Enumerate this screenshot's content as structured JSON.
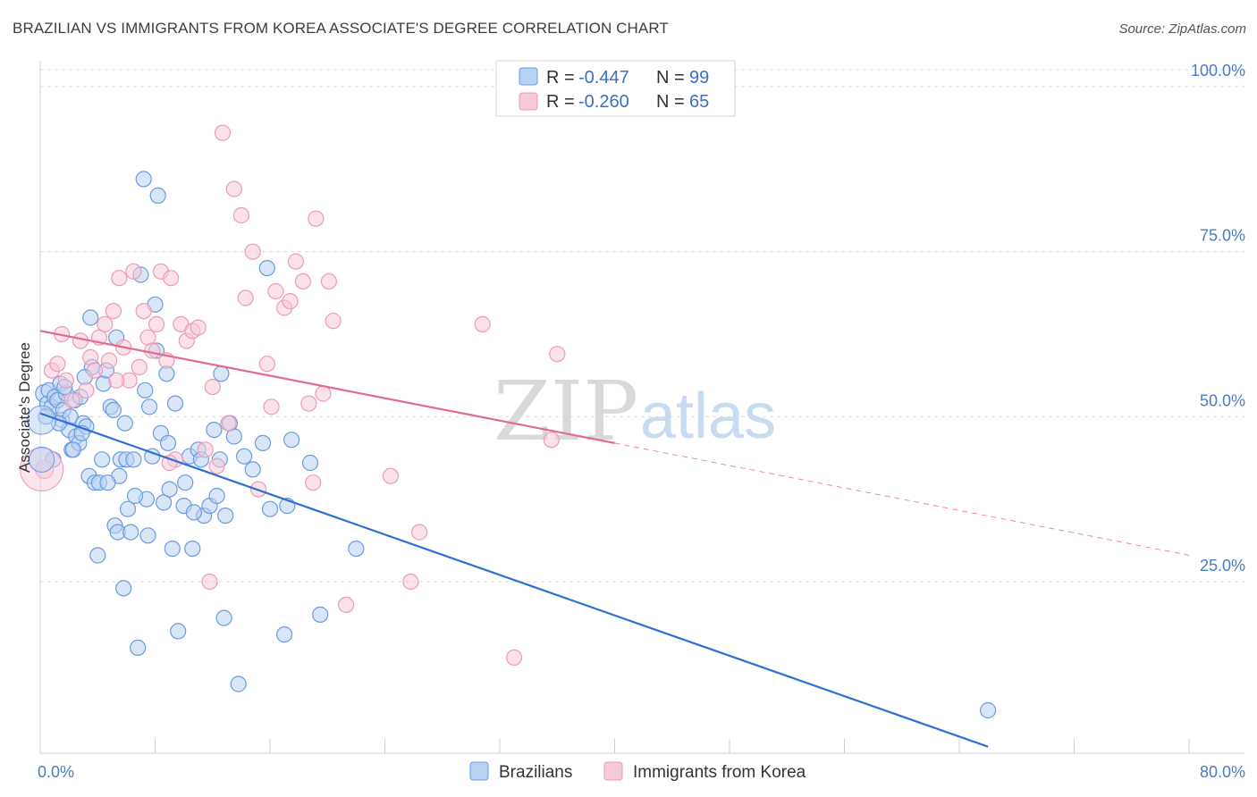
{
  "title": "BRAZILIAN VS IMMIGRANTS FROM KOREA ASSOCIATE'S DEGREE CORRELATION CHART",
  "source": "Source: ZipAtlas.com",
  "watermark": {
    "zip": "ZIP",
    "atlas": "atlas"
  },
  "legend_stats": [
    {
      "r_label": "R = ",
      "r_value": "-0.447",
      "n_label": "N = ",
      "n_value": "99",
      "color": "#a9c6ef"
    },
    {
      "r_label": "R = ",
      "r_value": "-0.260",
      "n_label": "N = ",
      "n_value": "65",
      "color": "#f4b8cb"
    }
  ],
  "chart_data": {
    "type": "scatter",
    "ylabel": "Associate's Degree",
    "xlim": [
      0,
      80
    ],
    "ylim": [
      0,
      105
    ],
    "x_tick_labels": [
      "0.0%",
      "80.0%"
    ],
    "y_ticks": [
      25,
      50,
      75,
      100
    ],
    "y_tick_labels": [
      "25.0%",
      "50.0%",
      "75.0%",
      "100.0%"
    ],
    "grid": true,
    "legend_position": "top-center",
    "series": [
      {
        "name": "Brazilians",
        "color": "#6a9be0",
        "fill": "#b8d1f3",
        "trend": {
          "x0": 0,
          "y0": 50.5,
          "x1": 66,
          "y1": 0,
          "dashed_to": 66
        },
        "points": [
          [
            0.3,
            53.5
          ],
          [
            0.5,
            52.0
          ],
          [
            0.6,
            54.0
          ],
          [
            0.8,
            51.5
          ],
          [
            1.0,
            53.0
          ],
          [
            1.2,
            52.5
          ],
          [
            1.4,
            55.0
          ],
          [
            1.5,
            49.5
          ],
          [
            1.6,
            51.0
          ],
          [
            1.8,
            53.5
          ],
          [
            2.0,
            48.0
          ],
          [
            2.1,
            50.0
          ],
          [
            2.2,
            45.0
          ],
          [
            2.4,
            52.5
          ],
          [
            2.5,
            47.0
          ],
          [
            2.7,
            46.0
          ],
          [
            2.8,
            53.0
          ],
          [
            3.0,
            49.0
          ],
          [
            3.2,
            48.5
          ],
          [
            3.4,
            41.0
          ],
          [
            3.5,
            65.0
          ],
          [
            3.6,
            57.5
          ],
          [
            3.8,
            40.0
          ],
          [
            4.0,
            29.0
          ],
          [
            4.1,
            40.0
          ],
          [
            4.3,
            43.5
          ],
          [
            4.4,
            55.0
          ],
          [
            4.6,
            57.0
          ],
          [
            4.9,
            51.5
          ],
          [
            5.1,
            51.0
          ],
          [
            5.2,
            33.5
          ],
          [
            5.3,
            62.0
          ],
          [
            5.4,
            32.5
          ],
          [
            5.5,
            41.0
          ],
          [
            5.6,
            43.5
          ],
          [
            5.8,
            24.0
          ],
          [
            5.9,
            49.0
          ],
          [
            6.0,
            43.5
          ],
          [
            6.1,
            36.0
          ],
          [
            6.3,
            32.5
          ],
          [
            6.5,
            43.5
          ],
          [
            6.8,
            15.0
          ],
          [
            7.0,
            71.5
          ],
          [
            7.2,
            86.0
          ],
          [
            7.3,
            54.0
          ],
          [
            7.4,
            37.5
          ],
          [
            7.5,
            32.0
          ],
          [
            7.6,
            51.5
          ],
          [
            7.8,
            44.0
          ],
          [
            8.0,
            67.0
          ],
          [
            8.1,
            60.0
          ],
          [
            8.2,
            83.5
          ],
          [
            8.4,
            47.5
          ],
          [
            8.6,
            37.0
          ],
          [
            8.8,
            56.5
          ],
          [
            9.0,
            39.0
          ],
          [
            9.2,
            30.0
          ],
          [
            9.4,
            52.0
          ],
          [
            9.6,
            17.5
          ],
          [
            10.1,
            40.0
          ],
          [
            10.0,
            36.5
          ],
          [
            10.4,
            44.0
          ],
          [
            10.6,
            30.0
          ],
          [
            11.0,
            45.0
          ],
          [
            11.2,
            43.5
          ],
          [
            11.4,
            35.0
          ],
          [
            11.8,
            36.5
          ],
          [
            12.1,
            48.0
          ],
          [
            12.5,
            43.5
          ],
          [
            12.6,
            56.5
          ],
          [
            12.8,
            19.5
          ],
          [
            12.9,
            35.0
          ],
          [
            13.2,
            49.0
          ],
          [
            13.8,
            9.5
          ],
          [
            14.2,
            44.0
          ],
          [
            14.8,
            42.0
          ],
          [
            15.5,
            46.0
          ],
          [
            15.8,
            72.5
          ],
          [
            16.0,
            36.0
          ],
          [
            17.0,
            17.0
          ],
          [
            17.2,
            36.5
          ],
          [
            17.5,
            46.5
          ],
          [
            18.8,
            43.0
          ],
          [
            19.5,
            20.0
          ],
          [
            22.0,
            30.0
          ],
          [
            66.0,
            5.5
          ],
          [
            0.9,
            43.5
          ],
          [
            1.3,
            49.0
          ],
          [
            2.3,
            45.0
          ],
          [
            3.1,
            56.0
          ],
          [
            4.7,
            40.0
          ],
          [
            6.6,
            38.0
          ],
          [
            8.9,
            46.0
          ],
          [
            10.7,
            35.5
          ],
          [
            12.3,
            38.0
          ],
          [
            13.5,
            47.0
          ],
          [
            0.4,
            50.0
          ],
          [
            1.7,
            54.5
          ],
          [
            2.9,
            47.5
          ]
        ]
      },
      {
        "name": "Immigrants from Korea",
        "color": "#ec9bb5",
        "fill": "#f8c9d8",
        "trend": {
          "x0": 0,
          "y0": 63.0,
          "x1": 40,
          "y1": 46.0,
          "dashed_to": 80,
          "dashed_end_y": 29.0
        },
        "points": [
          [
            0.3,
            42.0
          ],
          [
            0.8,
            57.0
          ],
          [
            1.2,
            58.0
          ],
          [
            1.5,
            62.5
          ],
          [
            1.8,
            55.5
          ],
          [
            2.2,
            52.5
          ],
          [
            2.8,
            61.5
          ],
          [
            3.2,
            54.0
          ],
          [
            3.5,
            59.0
          ],
          [
            3.8,
            57.0
          ],
          [
            4.1,
            62.0
          ],
          [
            4.5,
            64.0
          ],
          [
            4.8,
            58.5
          ],
          [
            5.1,
            66.0
          ],
          [
            5.5,
            71.0
          ],
          [
            5.8,
            60.5
          ],
          [
            6.2,
            55.5
          ],
          [
            6.5,
            72.0
          ],
          [
            6.9,
            57.5
          ],
          [
            7.2,
            66.0
          ],
          [
            7.5,
            62.0
          ],
          [
            7.8,
            60.0
          ],
          [
            8.1,
            64.0
          ],
          [
            8.4,
            72.0
          ],
          [
            8.8,
            58.5
          ],
          [
            9.1,
            71.0
          ],
          [
            9.4,
            43.5
          ],
          [
            9.8,
            64.0
          ],
          [
            10.2,
            61.5
          ],
          [
            10.6,
            63.0
          ],
          [
            11.0,
            63.5
          ],
          [
            11.5,
            45.0
          ],
          [
            11.8,
            25.0
          ],
          [
            12.0,
            54.5
          ],
          [
            12.3,
            42.5
          ],
          [
            12.7,
            93.0
          ],
          [
            13.1,
            49.0
          ],
          [
            13.5,
            84.5
          ],
          [
            14.0,
            80.5
          ],
          [
            14.3,
            68.0
          ],
          [
            14.8,
            75.0
          ],
          [
            15.2,
            39.0
          ],
          [
            15.8,
            58.0
          ],
          [
            16.1,
            51.5
          ],
          [
            16.4,
            69.0
          ],
          [
            17.0,
            66.5
          ],
          [
            17.4,
            67.5
          ],
          [
            17.8,
            73.5
          ],
          [
            18.3,
            70.5
          ],
          [
            18.7,
            52.0
          ],
          [
            19.2,
            80.0
          ],
          [
            19.7,
            53.5
          ],
          [
            20.1,
            70.5
          ],
          [
            20.4,
            64.5
          ],
          [
            21.3,
            21.5
          ],
          [
            24.4,
            41.0
          ],
          [
            25.8,
            25.0
          ],
          [
            26.4,
            32.5
          ],
          [
            30.8,
            64.0
          ],
          [
            33.0,
            13.5
          ],
          [
            35.6,
            46.5
          ],
          [
            36.0,
            59.5
          ],
          [
            19.0,
            40.0
          ],
          [
            9.0,
            43.0
          ],
          [
            5.3,
            55.5
          ]
        ]
      }
    ]
  },
  "bottom_legend": [
    "Brazilians",
    "Immigrants from Korea"
  ]
}
